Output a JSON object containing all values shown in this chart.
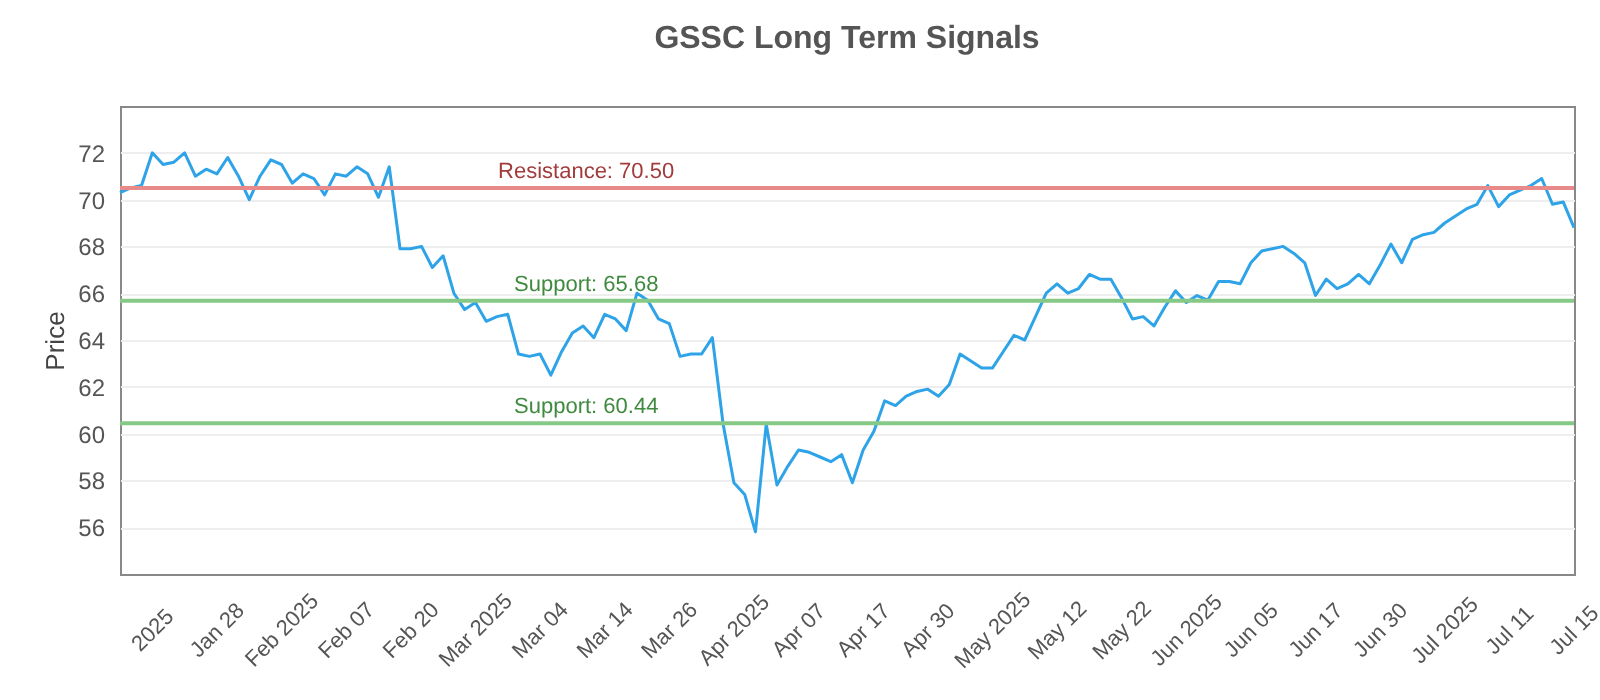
{
  "chart_data": {
    "type": "line",
    "title": "GSSC Long Term Signals",
    "ylabel": "Price",
    "categories": [
      null,
      null,
      null,
      "2025",
      null,
      null,
      null,
      null,
      null,
      "Jan 28",
      null,
      null,
      null,
      null,
      null,
      "Feb 2025",
      null,
      null,
      null,
      null,
      null,
      "Feb 07",
      null,
      null,
      null,
      null,
      null,
      "Feb 20",
      null,
      null,
      null,
      null,
      null,
      "Mar 2025",
      null,
      null,
      null,
      null,
      null,
      "Mar 04",
      null,
      null,
      null,
      null,
      null,
      "Mar 14",
      null,
      null,
      null,
      null,
      null,
      "Mar 26",
      null,
      null,
      null,
      null,
      null,
      "Apr 2025",
      null,
      null,
      null,
      null,
      null,
      "Apr 07",
      null,
      null,
      null,
      null,
      null,
      "Apr 17",
      null,
      null,
      null,
      null,
      null,
      "Apr 30",
      null,
      null,
      null,
      null,
      null,
      "May 2025",
      null,
      null,
      null,
      null,
      null,
      "May 12",
      null,
      null,
      null,
      null,
      null,
      "May 22",
      null,
      null,
      null,
      null,
      null,
      "Jun 2025",
      null,
      null,
      null,
      null,
      null,
      "Jun 05",
      null,
      null,
      null,
      null,
      null,
      "Jun 17",
      null,
      null,
      null,
      null,
      null,
      "Jun 30",
      null,
      null,
      null,
      null,
      null,
      "Jul 2025",
      null,
      null,
      null,
      null,
      null,
      "Jul 11",
      null,
      null,
      null,
      null,
      null,
      "Jul 15"
    ],
    "series": [
      {
        "color": "#2ea3e8",
        "values": [
          70.3,
          70.5,
          70.6,
          72.0,
          71.5,
          71.6,
          72.0,
          71.0,
          71.3,
          71.1,
          71.8,
          71.0,
          70.0,
          71.0,
          71.7,
          71.5,
          70.7,
          71.1,
          70.9,
          70.2,
          71.1,
          71.0,
          71.4,
          71.1,
          70.1,
          71.4,
          67.9,
          67.9,
          68.0,
          67.1,
          67.6,
          66.0,
          65.3,
          65.6,
          64.8,
          65.0,
          65.1,
          63.4,
          63.3,
          63.4,
          62.5,
          63.5,
          64.3,
          64.6,
          64.1,
          65.1,
          64.9,
          64.4,
          66.0,
          65.7,
          64.9,
          64.7,
          63.3,
          63.4,
          63.4,
          64.1,
          60.4,
          57.9,
          57.4,
          55.8,
          60.4,
          57.8,
          58.6,
          59.3,
          59.2,
          59.0,
          58.8,
          59.1,
          57.9,
          59.3,
          60.1,
          61.4,
          61.2,
          61.6,
          61.8,
          61.9,
          61.6,
          62.1,
          63.4,
          63.1,
          62.8,
          62.8,
          63.5,
          64.2,
          64.0,
          65.0,
          66.0,
          66.4,
          66.0,
          66.2,
          66.8,
          66.6,
          66.6,
          65.8,
          64.9,
          65.0,
          64.6,
          65.4,
          66.1,
          65.6,
          65.9,
          65.7,
          66.5,
          66.5,
          66.4,
          67.3,
          67.8,
          67.9,
          68.0,
          67.7,
          67.3,
          65.9,
          66.6,
          66.2,
          66.4,
          66.8,
          66.4,
          67.2,
          68.1,
          67.3,
          68.3,
          68.5,
          68.6,
          69.0,
          69.3,
          69.6,
          69.8,
          70.6,
          69.7,
          70.2,
          70.4,
          70.6,
          70.9,
          69.8,
          69.9,
          68.8
        ]
      }
    ],
    "ylim": [
      54,
      74
    ],
    "yticks": [
      56,
      58,
      60,
      62,
      64,
      66,
      68,
      70,
      72
    ],
    "grid": "y",
    "marker": "none",
    "ref_lines": [
      {
        "axis": "y",
        "value": 70.5,
        "label": "Resistance: 70.50",
        "color": "#e88a8a"
      },
      {
        "axis": "y",
        "value": 65.68,
        "label": "Support: 65.68",
        "color": "#86c986"
      },
      {
        "axis": "y",
        "value": 60.44,
        "label": "Support: 60.44",
        "color": "#86c986"
      }
    ]
  }
}
